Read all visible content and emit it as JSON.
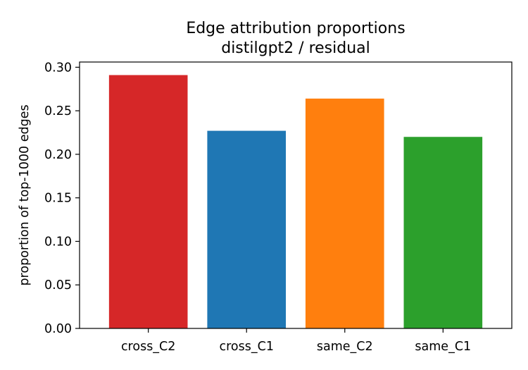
{
  "chart_data": {
    "type": "bar",
    "title": "Edge attribution proportions",
    "subtitle": "distilgpt2 / residual",
    "xlabel": "",
    "ylabel": "proportion of top-1000 edges",
    "categories": [
      "cross_C2",
      "cross_C1",
      "same_C2",
      "same_C1"
    ],
    "values": [
      0.291,
      0.227,
      0.264,
      0.22
    ],
    "colors": [
      "#d62728",
      "#1f77b4",
      "#ff7f0e",
      "#2ca02c"
    ],
    "ylim": [
      0,
      0.306
    ],
    "yticks": [
      0.0,
      0.05,
      0.1,
      0.15,
      0.2,
      0.25,
      0.3
    ],
    "ytick_labels": [
      "0.00",
      "0.05",
      "0.10",
      "0.15",
      "0.20",
      "0.25",
      "0.30"
    ],
    "grid": false,
    "legend": "none"
  }
}
